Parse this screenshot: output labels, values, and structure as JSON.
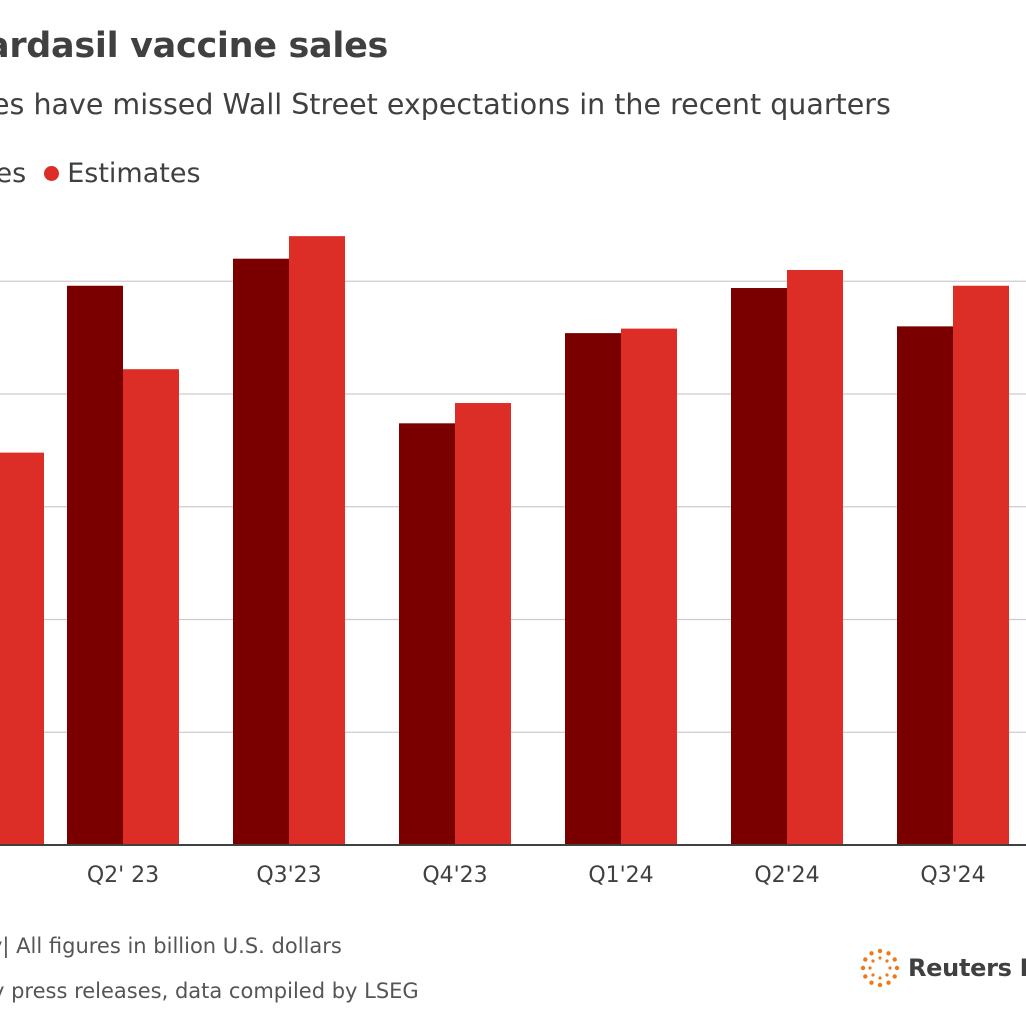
{
  "header": {
    "title": "ardasil vaccine sales",
    "subtitle": "es have missed Wall Street expectations in the recent quarters"
  },
  "legend": {
    "items": [
      {
        "label": "les",
        "color": "#7a0000"
      },
      {
        "label": "Estimates",
        "color": "#dc2d27"
      }
    ]
  },
  "footer": {
    "note": "y| All figures in billion U.S. dollars",
    "source": "y press releases, data compiled by LSEG",
    "brand": "Reuters B"
  },
  "chart_data": {
    "type": "bar",
    "categories": [
      "",
      "Q2' 23",
      "Q3'23",
      "Q4'23",
      "Q1'24",
      "Q2'24",
      "Q3'24"
    ],
    "series": [
      {
        "values": [
          null,
          2.48,
          2.6,
          1.87,
          2.27,
          2.47,
          2.3
        ],
        "color": "#7a0000"
      },
      {
        "values": [
          1.74,
          2.11,
          2.7,
          1.96,
          2.29,
          2.55,
          2.48
        ],
        "color": "#dc2d27"
      }
    ],
    "ylim": [
      0,
      2.75
    ],
    "gridlines": [
      0.5,
      1.0,
      1.5,
      2.0,
      2.5
    ],
    "grid": true
  }
}
